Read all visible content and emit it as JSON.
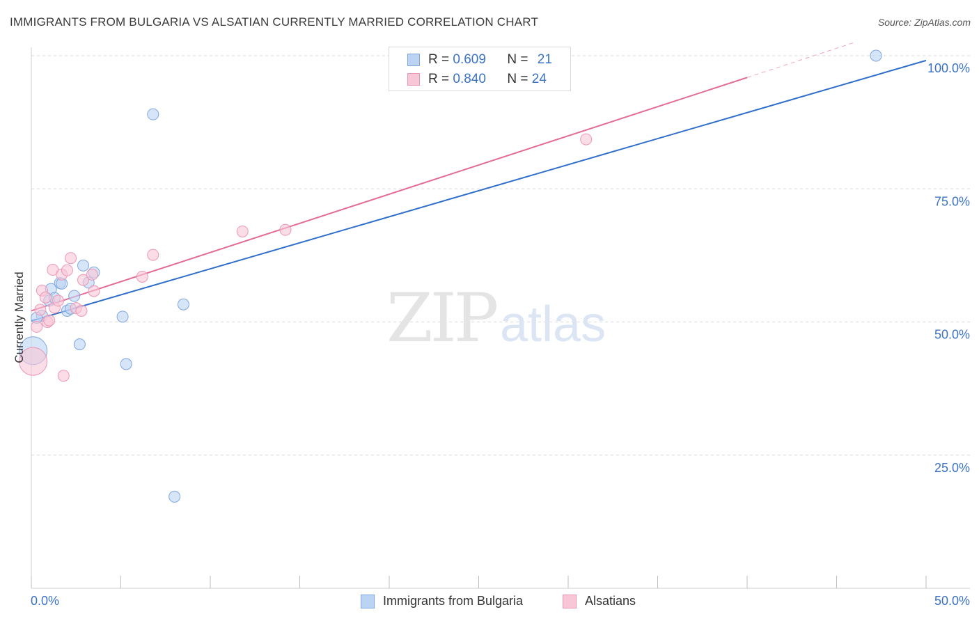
{
  "header": {
    "title": "IMMIGRANTS FROM BULGARIA VS ALSATIAN CURRENTLY MARRIED CORRELATION CHART",
    "source": "Source: ZipAtlas.com"
  },
  "watermark": {
    "zip": "ZIP",
    "atlas": "atlas"
  },
  "legend": {
    "rows": [
      {
        "r_label": "R = ",
        "r_value": "0.609",
        "n_label": "N = ",
        "n_value": "21"
      },
      {
        "r_label": "R = ",
        "r_value": "0.840",
        "n_label": "N = ",
        "n_value": "24"
      }
    ]
  },
  "bottom_legend": {
    "items": [
      {
        "label": "Immigrants from Bulgaria"
      },
      {
        "label": "Alsatians"
      }
    ]
  },
  "colors": {
    "blue_fill": "#bcd3f3",
    "blue_stroke": "#7ea6e0",
    "blue_line": "#2f6fcb",
    "pink_fill": "#f8c7d7",
    "pink_stroke": "#eb97b3",
    "pink_line": "#e36b96",
    "tick_text": "#3b72c6",
    "grid": "#d8d8d8"
  },
  "chart_data": {
    "type": "scatter",
    "title": "IMMIGRANTS FROM BULGARIA VS ALSATIAN CURRENTLY MARRIED CORRELATION CHART",
    "xlabel": "",
    "ylabel": "Currently Married",
    "xlim": [
      0,
      50
    ],
    "ylim": [
      0,
      105
    ],
    "x_tick_labels": [
      {
        "value": 0,
        "label": "0.0%"
      },
      {
        "value": 50,
        "label": "50.0%"
      }
    ],
    "y_tick_labels": [
      {
        "value": 25,
        "label": "25.0%"
      },
      {
        "value": 50,
        "label": "50.0%"
      },
      {
        "value": 75,
        "label": "75.0%"
      },
      {
        "value": 100,
        "label": "100.0%"
      }
    ],
    "x_minor_ticks": [
      0,
      5,
      10,
      15,
      20,
      25,
      30,
      35,
      40,
      45,
      50
    ],
    "series": [
      {
        "name": "Immigrants from Bulgaria",
        "color_key": "blue",
        "r": 0.609,
        "n": 21,
        "points": [
          {
            "x": 0.1,
            "y": 44.6,
            "big": true
          },
          {
            "x": 0.6,
            "y": 51.2
          },
          {
            "x": 1.0,
            "y": 54.0
          },
          {
            "x": 1.1,
            "y": 56.2
          },
          {
            "x": 1.3,
            "y": 54.5
          },
          {
            "x": 1.6,
            "y": 57.3
          },
          {
            "x": 1.7,
            "y": 57.2
          },
          {
            "x": 2.0,
            "y": 52.1
          },
          {
            "x": 2.2,
            "y": 52.5
          },
          {
            "x": 2.4,
            "y": 54.9
          },
          {
            "x": 2.7,
            "y": 45.8
          },
          {
            "x": 2.9,
            "y": 60.6
          },
          {
            "x": 3.2,
            "y": 57.4
          },
          {
            "x": 3.5,
            "y": 59.3
          },
          {
            "x": 5.1,
            "y": 51.0
          },
          {
            "x": 5.3,
            "y": 42.1
          },
          {
            "x": 6.8,
            "y": 89.0
          },
          {
            "x": 8.0,
            "y": 17.2
          },
          {
            "x": 8.5,
            "y": 53.3
          },
          {
            "x": 47.2,
            "y": 100.0
          },
          {
            "x": 0.3,
            "y": 50.8
          }
        ],
        "trend": {
          "x0": 0,
          "y0": 50.2,
          "x1": 50,
          "y1": 99.1
        }
      },
      {
        "name": "Alsatians",
        "color_key": "pink",
        "r": 0.84,
        "n": 24,
        "points": [
          {
            "x": 0.1,
            "y": 42.6,
            "big": true
          },
          {
            "x": 0.3,
            "y": 49.1
          },
          {
            "x": 0.5,
            "y": 52.3
          },
          {
            "x": 0.6,
            "y": 55.9
          },
          {
            "x": 0.8,
            "y": 54.6
          },
          {
            "x": 0.9,
            "y": 50.0
          },
          {
            "x": 1.0,
            "y": 50.3
          },
          {
            "x": 1.2,
            "y": 59.8
          },
          {
            "x": 1.3,
            "y": 52.7
          },
          {
            "x": 1.5,
            "y": 54.0
          },
          {
            "x": 1.7,
            "y": 58.9
          },
          {
            "x": 1.8,
            "y": 39.9
          },
          {
            "x": 2.0,
            "y": 59.7
          },
          {
            "x": 2.2,
            "y": 62.0
          },
          {
            "x": 2.5,
            "y": 52.6
          },
          {
            "x": 2.8,
            "y": 52.1
          },
          {
            "x": 2.9,
            "y": 57.9
          },
          {
            "x": 3.4,
            "y": 58.9
          },
          {
            "x": 3.5,
            "y": 55.8
          },
          {
            "x": 6.2,
            "y": 58.5
          },
          {
            "x": 6.8,
            "y": 62.6
          },
          {
            "x": 11.8,
            "y": 67.0
          },
          {
            "x": 14.2,
            "y": 67.3
          },
          {
            "x": 31.0,
            "y": 84.3
          }
        ],
        "trend": {
          "x0": 0,
          "y0": 52.1,
          "x1": 40,
          "y1": 95.9,
          "dash_x1": 46,
          "dash_y1": 102.5
        }
      }
    ]
  }
}
